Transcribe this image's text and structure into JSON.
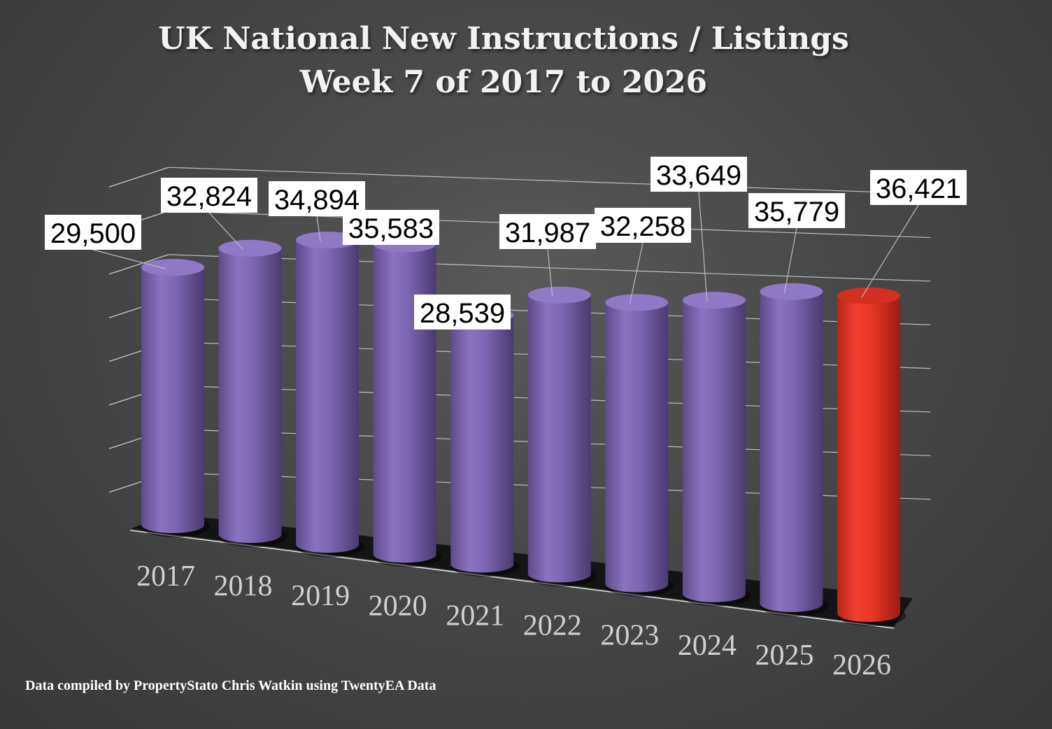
{
  "chart_data": {
    "type": "bar",
    "title": "UK National New Instructions / Listings",
    "subtitle": "Week 7 of 2017 to 2026",
    "categories": [
      "2017",
      "2018",
      "2019",
      "2020",
      "2021",
      "2022",
      "2023",
      "2024",
      "2025",
      "2026"
    ],
    "values": [
      29500,
      32824,
      34894,
      35583,
      28539,
      31987,
      32258,
      33649,
      35779,
      36421
    ],
    "value_labels": [
      "29,500",
      "32,824",
      "34,894",
      "35,583",
      "28,539",
      "31,987",
      "32,258",
      "33,649",
      "35,779",
      "36,421"
    ],
    "highlight_category": "2026",
    "series_color": "#7d66b3",
    "highlight_color": "#e83525",
    "xlabel": "",
    "ylabel": "",
    "ylim": [
      0,
      40000
    ],
    "grid": true,
    "legend": "none"
  },
  "source_note": "Data compiled by PropertyStato Chris Watkin using TwentyEA Data"
}
